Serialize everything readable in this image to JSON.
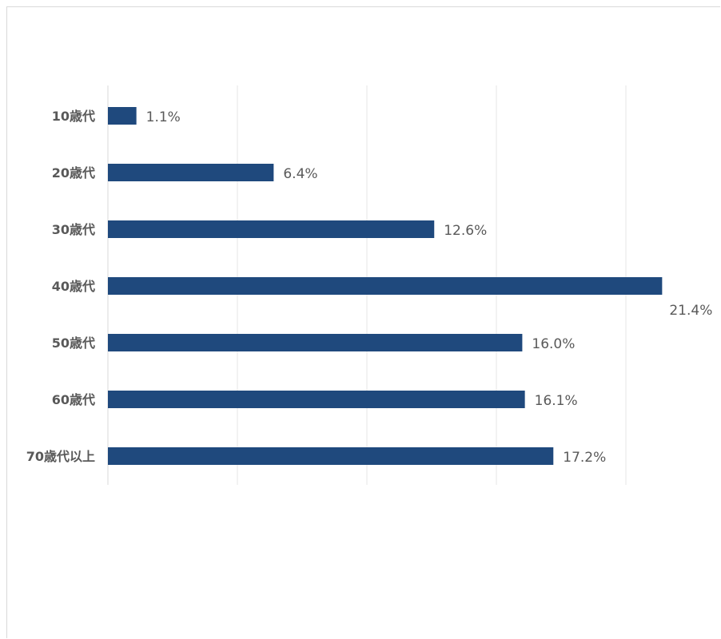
{
  "chart_data": {
    "type": "bar",
    "orientation": "horizontal",
    "categories": [
      "10歳代",
      "20歳代",
      "30歳代",
      "40歳代",
      "50歳代",
      "60歳代",
      "70歳代以上"
    ],
    "values": [
      1.1,
      6.4,
      12.6,
      21.4,
      16.0,
      16.1,
      17.2
    ],
    "value_labels": [
      "1.1%",
      "6.4%",
      "12.6%",
      "21.4%",
      "16.0%",
      "16.1%",
      "17.2%"
    ],
    "unit": "%",
    "xlim": [
      0,
      25
    ],
    "grid": true,
    "gridline_count": 5,
    "bar_color": "#1f497d",
    "grid_color": "#e6e6e6",
    "label_color": "#595959"
  }
}
